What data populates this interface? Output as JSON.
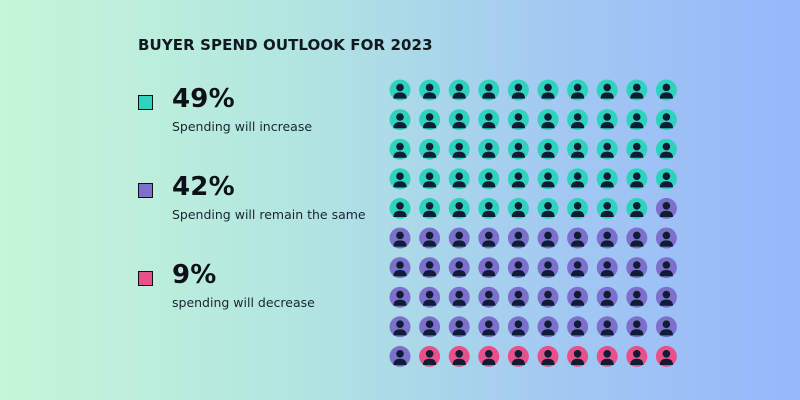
{
  "title": "BUYER SPEND OUTLOOK FOR 2023",
  "legend": [
    {
      "percent": "49%",
      "label": "Spending will increase",
      "color": "#2ed3be"
    },
    {
      "percent": "42%",
      "label": "Spending will remain the same",
      "color": "#7c70cc"
    },
    {
      "percent": "9%",
      "label": "spending will decrease",
      "color": "#e8508a"
    }
  ],
  "chart_data": {
    "type": "waffle",
    "title": "BUYER SPEND OUTLOOK FOR 2023",
    "grid": {
      "rows": 10,
      "cols": 10
    },
    "categories": [
      "Spending will increase",
      "Spending will remain the same",
      "spending will decrease"
    ],
    "values": [
      49,
      42,
      9
    ],
    "unit": "%",
    "colors": [
      "#2ed3be",
      "#7c70cc",
      "#e8508a"
    ],
    "icon": "person-icon",
    "fill_order": "row-major, top-left to bottom-right"
  }
}
